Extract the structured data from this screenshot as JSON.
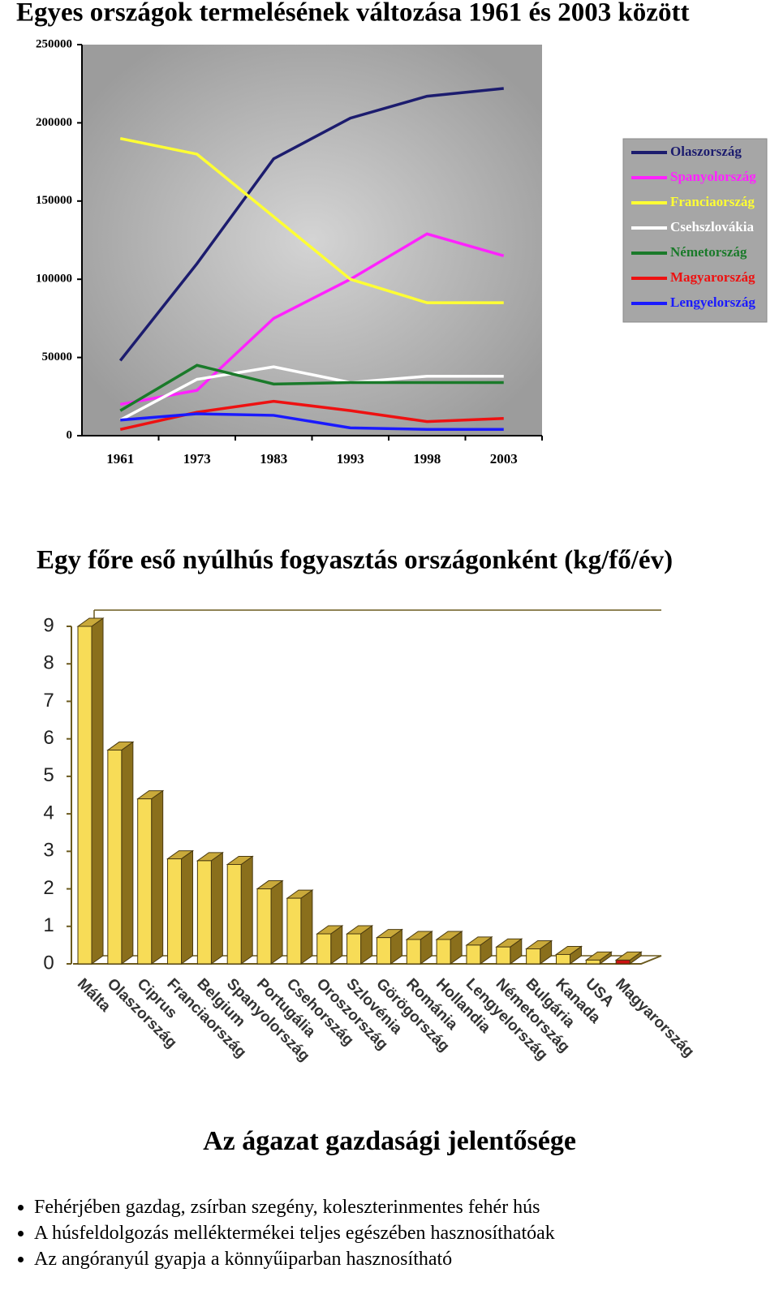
{
  "chart_data": [
    {
      "type": "line",
      "title": "Egyes országok termelésének változása 1961 és 2003 között",
      "categories": [
        "1961",
        "1973",
        "1983",
        "1993",
        "1998",
        "2003"
      ],
      "series": [
        {
          "name": "Olaszország",
          "color": "#1c1c6e",
          "values": [
            48000,
            110000,
            177000,
            203000,
            217000,
            222000
          ]
        },
        {
          "name": "Spanyolország",
          "color": "#ff22ff",
          "values": [
            20000,
            29000,
            75000,
            100000,
            129000,
            115000
          ]
        },
        {
          "name": "Franciaország",
          "color": "#ffff33",
          "values": [
            190000,
            180000,
            140000,
            100000,
            85000,
            85000
          ]
        },
        {
          "name": "Csehszlovákia",
          "color": "#ffffff",
          "values": [
            10000,
            36000,
            44000,
            34000,
            38000,
            38000
          ]
        },
        {
          "name": "Németország",
          "color": "#1a7a2a",
          "values": [
            16000,
            45000,
            33000,
            34000,
            34000,
            34000
          ]
        },
        {
          "name": "Magyarország",
          "color": "#ee1111",
          "values": [
            4000,
            15000,
            22000,
            16000,
            9000,
            11000
          ]
        },
        {
          "name": "Lengyelország",
          "color": "#1a1aff",
          "values": [
            10000,
            14000,
            13000,
            5000,
            4000,
            4000
          ]
        }
      ],
      "ylim": [
        0,
        250000
      ],
      "yticks": [
        0,
        50000,
        100000,
        150000,
        200000,
        250000
      ],
      "legend": "right"
    },
    {
      "type": "bar3d",
      "title": "Egy főre eső nyúlhús fogyasztás országonként (kg/fő/év)",
      "categories": [
        "Málta",
        "Olaszország",
        "Ciprus",
        "Franciaország",
        "Belgium",
        "Spanyolország",
        "Portugália",
        "Csehország",
        "Oroszország",
        "Szlovénia",
        "Görögország",
        "Románia",
        "Hollandia",
        "Lengyelország",
        "Németország",
        "Bulgária",
        "Kanada",
        "USA",
        "Magyarország"
      ],
      "values": [
        9,
        5.7,
        4.4,
        2.8,
        2.75,
        2.65,
        2.0,
        1.75,
        0.8,
        0.8,
        0.7,
        0.65,
        0.65,
        0.5,
        0.45,
        0.4,
        0.25,
        0.1,
        0.1
      ],
      "colors": [
        "#f7dc57",
        "#f7dc57",
        "#f7dc57",
        "#f7dc57",
        "#f7dc57",
        "#f7dc57",
        "#f7dc57",
        "#f7dc57",
        "#f7dc57",
        "#f7dc57",
        "#f7dc57",
        "#f7dc57",
        "#f7dc57",
        "#f7dc57",
        "#f7dc57",
        "#f7dc57",
        "#f7dc57",
        "#f7dc57",
        "#cc1111"
      ],
      "ylim": [
        0,
        9
      ],
      "yticks": [
        0,
        1,
        2,
        3,
        4,
        5,
        6,
        7,
        8,
        9
      ]
    }
  ],
  "section": {
    "title": "Az ágazat gazdasági jelentősége",
    "bullets": [
      "Fehérjében gazdag, zsírban szegény, koleszterinmentes fehér hús",
      "A húsfeldolgozás melléktermékei teljes egészében hasznosíthatóak",
      "Az angóranyúl gyapja a könnyűiparban hasznosítható"
    ]
  }
}
